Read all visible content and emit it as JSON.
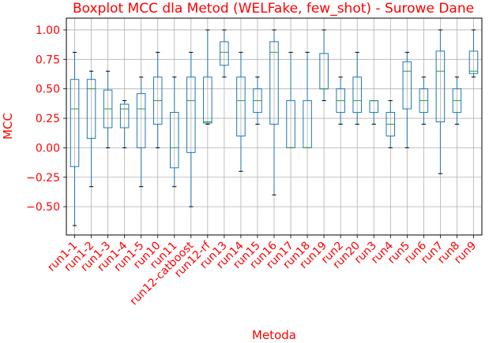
{
  "chart_data": {
    "type": "boxplot",
    "title": "Boxplot MCC dla Metod (WELFake, few_shot) - Surowe Dane",
    "xlabel": "Metoda",
    "ylabel": "MCC",
    "ylim": [
      -0.74,
      1.1
    ],
    "yticks": [
      -0.5,
      -0.25,
      0.0,
      0.25,
      0.5,
      0.75,
      1.0
    ],
    "ytick_labels": [
      "−0.50",
      "−0.25",
      "0.00",
      "0.25",
      "0.50",
      "0.75",
      "1.00"
    ],
    "grid": true,
    "colors": {
      "box": "#1f77b4",
      "median": "#2ca02c",
      "whisker": "#1f77b4",
      "cap": "#000000",
      "text": "#ff0000",
      "grid": "#b0b0b0"
    },
    "categories": [
      "run1-1",
      "run1-2",
      "run1-3",
      "run1-4",
      "run1-5",
      "run10",
      "run11",
      "run12-catboost",
      "run12-rf",
      "run13",
      "run14",
      "run15",
      "run16",
      "run17",
      "run18",
      "run19",
      "run2",
      "run20",
      "run3",
      "run4",
      "run5",
      "run6",
      "run7",
      "run8",
      "run9"
    ],
    "boxes": [
      {
        "whislo": -0.66,
        "q1": -0.16,
        "med": 0.33,
        "q3": 0.58,
        "whishi": 0.81
      },
      {
        "whislo": -0.33,
        "q1": 0.08,
        "med": 0.5,
        "q3": 0.58,
        "whishi": 0.65
      },
      {
        "whislo": 0.0,
        "q1": 0.17,
        "med": 0.33,
        "q3": 0.49,
        "whishi": 0.65
      },
      {
        "whislo": 0.0,
        "q1": 0.17,
        "med": 0.33,
        "q3": 0.37,
        "whishi": 0.4
      },
      {
        "whislo": -0.33,
        "q1": 0.0,
        "med": 0.33,
        "q3": 0.46,
        "whishi": 0.6
      },
      {
        "whislo": 0.0,
        "q1": 0.2,
        "med": 0.4,
        "q3": 0.6,
        "whishi": 0.81
      },
      {
        "whislo": -0.33,
        "q1": -0.17,
        "med": 0.0,
        "q3": 0.3,
        "whishi": 0.6
      },
      {
        "whislo": -0.5,
        "q1": -0.04,
        "med": 0.4,
        "q3": 0.6,
        "whishi": 0.81
      },
      {
        "whislo": 0.2,
        "q1": 0.21,
        "med": 0.22,
        "q3": 0.6,
        "whishi": 1.0
      },
      {
        "whislo": 0.6,
        "q1": 0.7,
        "med": 0.81,
        "q3": 0.9,
        "whishi": 1.0
      },
      {
        "whislo": -0.2,
        "q1": 0.1,
        "med": 0.4,
        "q3": 0.6,
        "whishi": 0.81
      },
      {
        "whislo": 0.2,
        "q1": 0.3,
        "med": 0.4,
        "q3": 0.5,
        "whishi": 0.6
      },
      {
        "whislo": -0.4,
        "q1": 0.2,
        "med": 0.81,
        "q3": 0.9,
        "whishi": 1.0
      },
      {
        "whislo": 0.0,
        "q1": 0.0,
        "med": 0.0,
        "q3": 0.4,
        "whishi": 0.81
      },
      {
        "whislo": 0.0,
        "q1": 0.0,
        "med": 0.0,
        "q3": 0.4,
        "whishi": 0.81
      },
      {
        "whislo": 0.4,
        "q1": 0.5,
        "med": 0.5,
        "q3": 0.8,
        "whishi": 1.0
      },
      {
        "whislo": 0.2,
        "q1": 0.3,
        "med": 0.4,
        "q3": 0.5,
        "whishi": 0.6
      },
      {
        "whislo": 0.2,
        "q1": 0.3,
        "med": 0.4,
        "q3": 0.6,
        "whishi": 0.81
      },
      {
        "whislo": 0.2,
        "q1": 0.3,
        "med": 0.4,
        "q3": 0.4,
        "whishi": 0.4
      },
      {
        "whislo": 0.0,
        "q1": 0.1,
        "med": 0.2,
        "q3": 0.3,
        "whishi": 0.4
      },
      {
        "whislo": 0.0,
        "q1": 0.33,
        "med": 0.65,
        "q3": 0.73,
        "whishi": 0.81
      },
      {
        "whislo": 0.2,
        "q1": 0.3,
        "med": 0.4,
        "q3": 0.5,
        "whishi": 0.6
      },
      {
        "whislo": -0.22,
        "q1": 0.22,
        "med": 0.65,
        "q3": 0.82,
        "whishi": 1.0
      },
      {
        "whislo": 0.2,
        "q1": 0.3,
        "med": 0.4,
        "q3": 0.5,
        "whishi": 0.6
      },
      {
        "whislo": 0.6,
        "q1": 0.63,
        "med": 0.65,
        "q3": 0.82,
        "whishi": 1.0
      }
    ]
  }
}
